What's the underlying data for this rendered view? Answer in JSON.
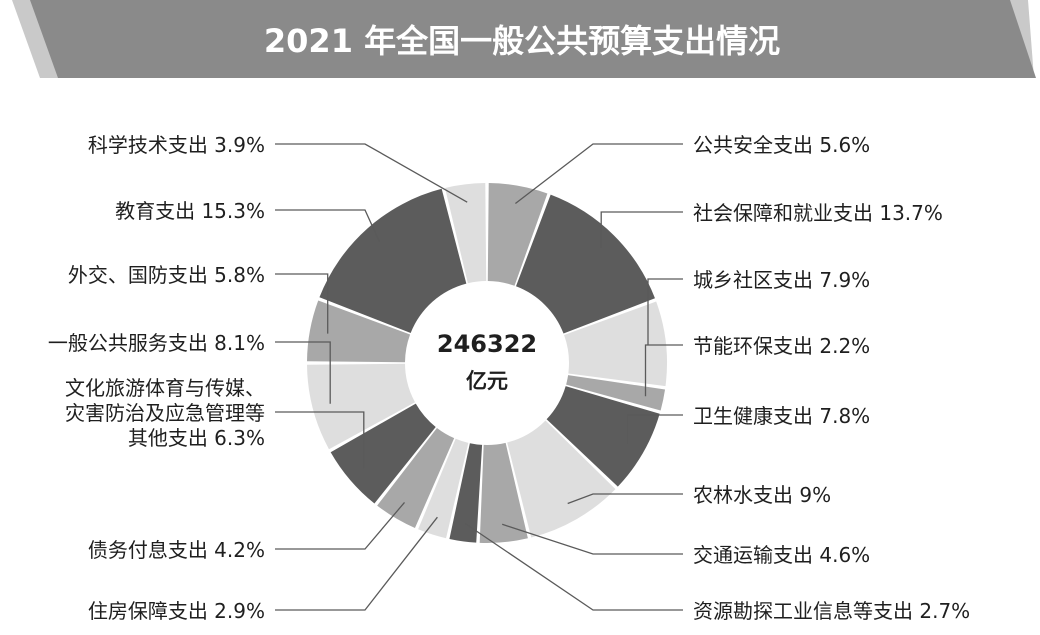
{
  "colors": {
    "banner": "#8a8a8a",
    "banner_edge": "#c9c9c9",
    "dark": "#5c5c5c",
    "mid": "#a8a8a8",
    "light": "#dedede",
    "text": "#1f1f1f"
  },
  "chart_data": {
    "type": "pie",
    "style": "donut",
    "title": "2021 年全国一般公共预算支出情况",
    "center_value": "246322",
    "center_unit": "亿元",
    "slices": [
      {
        "label": "公共安全支出 5.6%",
        "value": 5.6,
        "shade": "mid"
      },
      {
        "label": "社会保障和就业支出 13.7%",
        "value": 13.7,
        "shade": "dark"
      },
      {
        "label": "城乡社区支出 7.9%",
        "value": 7.9,
        "shade": "light"
      },
      {
        "label": "节能环保支出 2.2%",
        "value": 2.2,
        "shade": "mid"
      },
      {
        "label": "卫生健康支出 7.8%",
        "value": 7.8,
        "shade": "dark"
      },
      {
        "label": "农林水支出 9%",
        "value": 9.0,
        "shade": "light"
      },
      {
        "label": "交通运输支出 4.6%",
        "value": 4.6,
        "shade": "mid"
      },
      {
        "label": "资源勘探工业信息等支出 2.7%",
        "value": 2.7,
        "shade": "dark"
      },
      {
        "label": "住房保障支出 2.9%",
        "value": 2.9,
        "shade": "light"
      },
      {
        "label": "债务付息支出 4.2%",
        "value": 4.2,
        "shade": "mid"
      },
      {
        "label": "文化旅游体育与传媒、灾害防治及应急管理等其他支出 6.3%",
        "lines": [
          "文化旅游体育与传媒、",
          "灾害防治及应急管理等",
          "其他支出 6.3%"
        ],
        "value": 6.3,
        "shade": "dark"
      },
      {
        "label": "一般公共服务支出 8.1%",
        "value": 8.1,
        "shade": "light"
      },
      {
        "label": "外交、国防支出 5.8%",
        "value": 5.8,
        "shade": "mid"
      },
      {
        "label": "教育支出 15.3%",
        "value": 15.3,
        "shade": "dark"
      },
      {
        "label": "科学技术支出 3.9%",
        "value": 3.9,
        "shade": "light"
      }
    ]
  }
}
